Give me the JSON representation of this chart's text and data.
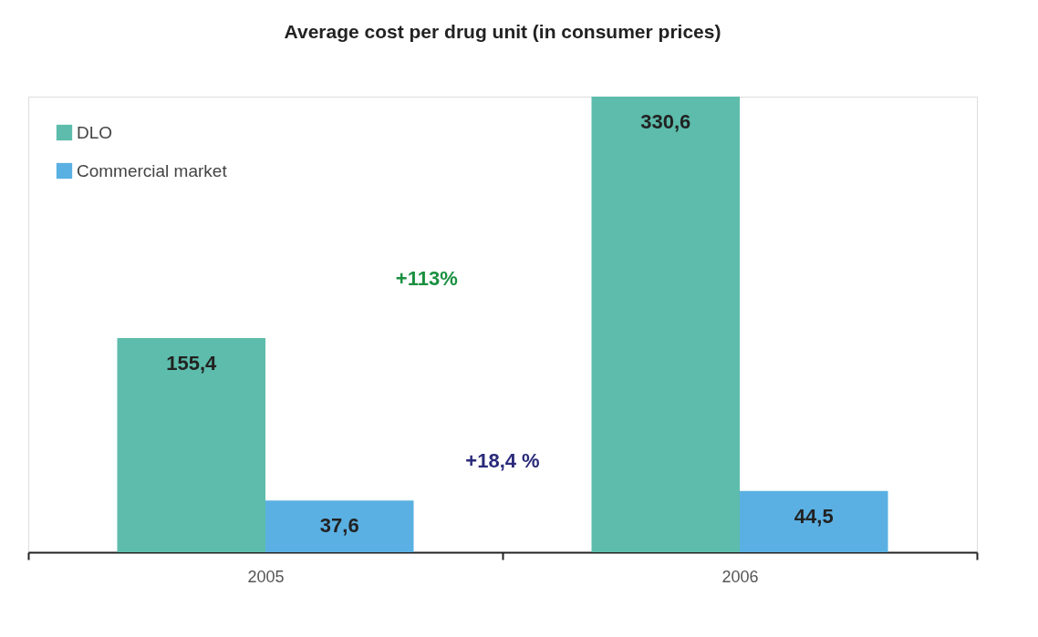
{
  "chart_data": {
    "type": "bar",
    "title": "Average cost per drug unit (in consumer prices)",
    "categories": [
      "2005",
      "2006"
    ],
    "series": [
      {
        "name": "DLO",
        "color": "#5dbcab",
        "values": [
          155.4,
          330.6
        ],
        "value_labels": [
          "155,4",
          "330,6"
        ]
      },
      {
        "name": "Commercial market",
        "color": "#5ab0e2",
        "values": [
          37.6,
          44.5
        ],
        "value_labels": [
          "37,6",
          "44,5"
        ]
      }
    ],
    "annotations": [
      "+113%",
      "+18,4 %"
    ],
    "legend": "top left",
    "grid": false
  }
}
